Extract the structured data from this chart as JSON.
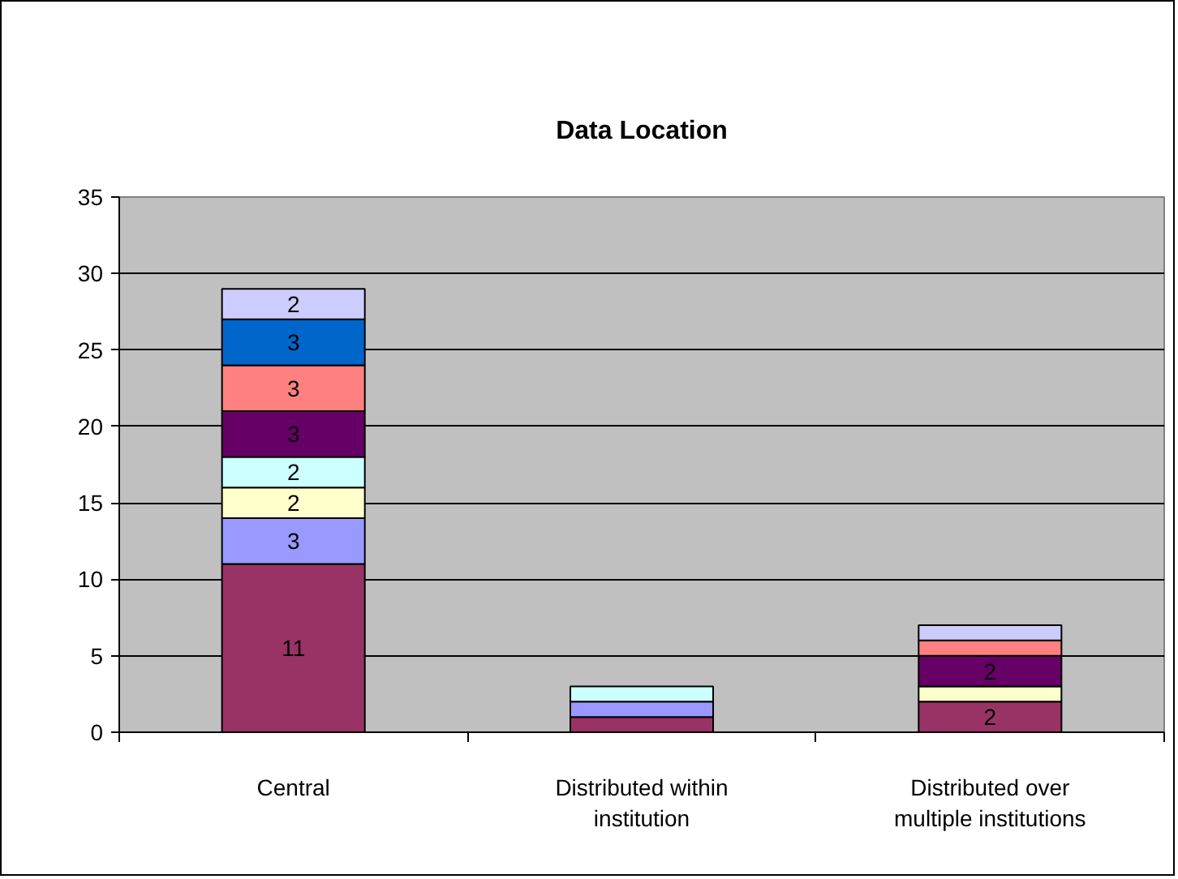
{
  "chart_data": {
    "type": "bar",
    "title": "Data Location",
    "categories": [
      "Central",
      "Distributed within institution",
      "Distributed over multiple institutions"
    ],
    "stacked": true,
    "series": [
      {
        "color": "#993366",
        "values": [
          11,
          1,
          2
        ],
        "value_labels": [
          "11",
          null,
          "2"
        ]
      },
      {
        "color": "#9999ff",
        "values": [
          3,
          1,
          0
        ],
        "value_labels": [
          "3",
          null,
          null
        ]
      },
      {
        "color": "#ffffcc",
        "values": [
          2,
          0,
          1
        ],
        "value_labels": [
          "2",
          null,
          null
        ]
      },
      {
        "color": "#ccffff",
        "values": [
          2,
          1,
          0
        ],
        "value_labels": [
          "2",
          null,
          null
        ]
      },
      {
        "color": "#660066",
        "values": [
          3,
          0,
          2
        ],
        "value_labels": [
          "3",
          null,
          "2"
        ]
      },
      {
        "color": "#ff8080",
        "values": [
          3,
          0,
          1
        ],
        "value_labels": [
          "3",
          null,
          null
        ]
      },
      {
        "color": "#0066cc",
        "values": [
          3,
          0,
          0
        ],
        "value_labels": [
          "3",
          null,
          null
        ]
      },
      {
        "color": "#ccccff",
        "values": [
          2,
          0,
          1
        ],
        "value_labels": [
          "2",
          null,
          null
        ]
      }
    ],
    "ylim": [
      0,
      35
    ],
    "yticks": [
      0,
      5,
      10,
      15,
      20,
      25,
      30,
      35
    ],
    "grid": "y"
  }
}
